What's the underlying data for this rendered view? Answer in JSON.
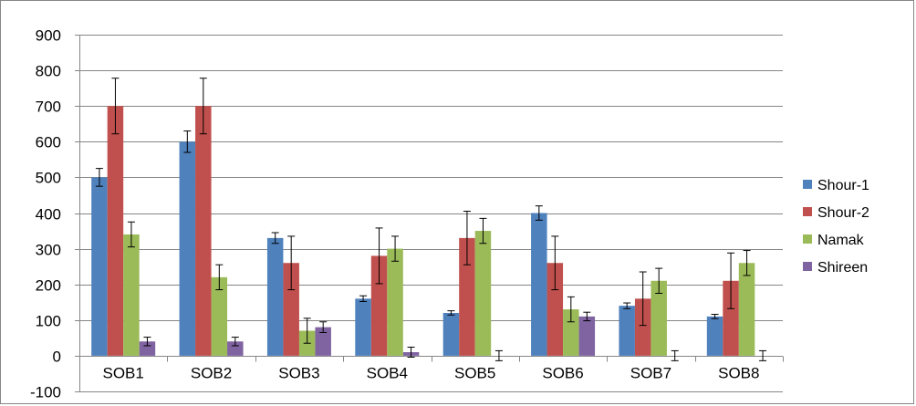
{
  "chart_data": {
    "type": "bar",
    "title": "",
    "xlabel": "",
    "ylabel": "",
    "ylim": [
      -100,
      900
    ],
    "yticks": [
      -100,
      0,
      100,
      200,
      300,
      400,
      500,
      600,
      700,
      800,
      900
    ],
    "grid": "horizontal",
    "legend_position": "right",
    "categories": [
      "SOB1",
      "SOB2",
      "SOB3",
      "SOB4",
      "SOB5",
      "SOB6",
      "SOB7",
      "SOB8"
    ],
    "series": [
      {
        "name": "Shour-1",
        "color": "#4F81BD",
        "values": [
          500,
          600,
          330,
          160,
          120,
          400,
          140,
          110
        ],
        "errors": [
          25,
          30,
          15,
          8,
          6,
          20,
          8,
          6
        ]
      },
      {
        "name": "Shour-2",
        "color": "#C0504D",
        "values": [
          700,
          700,
          260,
          280,
          330,
          260,
          160,
          210
        ],
        "errors": [
          78,
          78,
          75,
          78,
          75,
          75,
          75,
          78
        ]
      },
      {
        "name": "Namak",
        "color": "#9BBB59",
        "values": [
          340,
          220,
          70,
          300,
          350,
          130,
          210,
          260
        ],
        "errors": [
          35,
          35,
          35,
          35,
          35,
          35,
          35,
          35
        ]
      },
      {
        "name": "Shireen",
        "color": "#8064A2",
        "values": [
          40,
          40,
          80,
          10,
          0,
          110,
          0,
          0
        ],
        "errors": [
          12,
          12,
          15,
          14,
          14,
          12,
          14,
          14
        ]
      }
    ]
  }
}
